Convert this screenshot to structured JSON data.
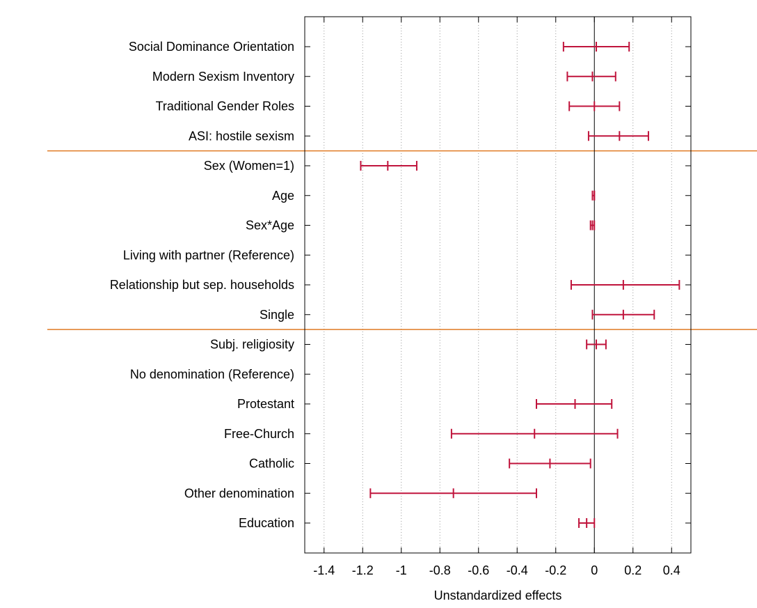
{
  "chart_data": {
    "type": "forest",
    "title": "",
    "xlabel": "Unstandardized effects",
    "ylabel": "",
    "xlim": [
      -1.5,
      0.5
    ],
    "xticks": [
      -1.4,
      -1.2,
      -1,
      -0.8,
      -0.6,
      -0.4,
      -0.2,
      0,
      0.2,
      0.4
    ],
    "xtick_labels": [
      "-1.4",
      "-1.2",
      "-1",
      "-0.8",
      "-0.6",
      "-0.4",
      "-0.2",
      "0",
      "0.2",
      "0.4"
    ],
    "grid": "vertical dotted",
    "reference_line": 0,
    "colors": {
      "interval": "#c0143c",
      "separator": "#e07b24",
      "grid": "#999999",
      "axis": "#000000"
    },
    "separators_after": [
      3,
      9
    ],
    "rows": [
      {
        "label": "Social Dominance Orientation",
        "estimate": 0.01,
        "lower": -0.16,
        "upper": 0.18
      },
      {
        "label": "Modern Sexism Inventory",
        "estimate": -0.01,
        "lower": -0.14,
        "upper": 0.11
      },
      {
        "label": "Traditional Gender Roles",
        "estimate": 0.0,
        "lower": -0.13,
        "upper": 0.13
      },
      {
        "label": "ASI: hostile sexism",
        "estimate": 0.13,
        "lower": -0.03,
        "upper": 0.28
      },
      {
        "label": "Sex (Women=1)",
        "estimate": -1.07,
        "lower": -1.21,
        "upper": -0.92
      },
      {
        "label": "Age",
        "estimate": 0.0,
        "lower": -0.01,
        "upper": 0.0
      },
      {
        "label": "Sex*Age",
        "estimate": -0.01,
        "lower": -0.02,
        "upper": 0.0
      },
      {
        "label": "Living with partner (Reference)",
        "estimate": null,
        "lower": null,
        "upper": null
      },
      {
        "label": "Relationship but sep. households",
        "estimate": 0.15,
        "lower": -0.12,
        "upper": 0.44
      },
      {
        "label": "Single",
        "estimate": 0.15,
        "lower": -0.01,
        "upper": 0.31
      },
      {
        "label": "Subj. religiosity",
        "estimate": 0.01,
        "lower": -0.04,
        "upper": 0.06
      },
      {
        "label": "No denomination (Reference)",
        "estimate": null,
        "lower": null,
        "upper": null
      },
      {
        "label": "Protestant",
        "estimate": -0.1,
        "lower": -0.3,
        "upper": 0.09
      },
      {
        "label": "Free-Church",
        "estimate": -0.31,
        "lower": -0.74,
        "upper": 0.12
      },
      {
        "label": "Catholic",
        "estimate": -0.23,
        "lower": -0.44,
        "upper": -0.02
      },
      {
        "label": "Other denomination",
        "estimate": -0.73,
        "lower": -1.16,
        "upper": -0.3
      },
      {
        "label": "Education",
        "estimate": -0.04,
        "lower": -0.08,
        "upper": 0.0
      }
    ]
  }
}
